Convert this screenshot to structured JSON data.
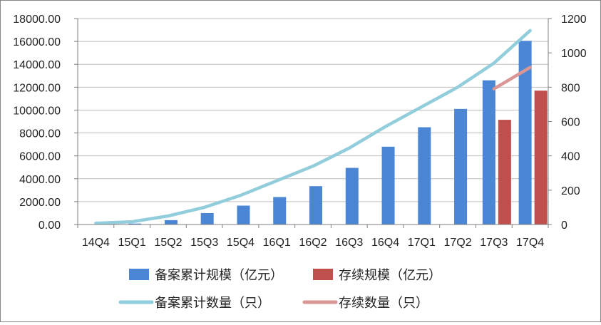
{
  "chart_data": {
    "type": "bar",
    "categories": [
      "14Q4",
      "15Q1",
      "15Q2",
      "15Q3",
      "15Q4",
      "16Q1",
      "16Q2",
      "16Q3",
      "16Q4",
      "17Q1",
      "17Q2",
      "17Q3",
      "17Q4"
    ],
    "bar_series": [
      {
        "name": "备案累计规模（亿元）",
        "color": "#4a86d4",
        "axis": "left",
        "values": [
          0,
          80,
          380,
          1000,
          1650,
          2400,
          3350,
          4950,
          6800,
          8500,
          10100,
          12600,
          16050
        ]
      },
      {
        "name": "存续规模（亿元）",
        "color": "#c0504d",
        "axis": "left",
        "values": [
          null,
          null,
          null,
          null,
          null,
          null,
          null,
          null,
          null,
          null,
          null,
          9150,
          11700
        ]
      }
    ],
    "line_series": [
      {
        "name": "备案累计数量（只）",
        "color": "#92cddc",
        "axis": "right",
        "values": [
          7,
          16,
          50,
          100,
          170,
          255,
          340,
          445,
          570,
          685,
          800,
          940,
          1130
        ]
      },
      {
        "name": "存续数量（只）",
        "color": "#da9694",
        "axis": "right",
        "values": [
          null,
          null,
          null,
          null,
          null,
          null,
          null,
          null,
          null,
          null,
          null,
          790,
          915
        ]
      }
    ],
    "y_left": {
      "min": 0,
      "max": 18000,
      "ticks": [
        "0.00",
        "2000.00",
        "4000.00",
        "6000.00",
        "8000.00",
        "10000.00",
        "12000.00",
        "14000.00",
        "16000.00",
        "18000.00"
      ]
    },
    "y_right": {
      "min": 0,
      "max": 1200,
      "ticks": [
        "0",
        "200",
        "400",
        "600",
        "800",
        "1000",
        "1200"
      ]
    },
    "grid": true,
    "legend_position": "bottom"
  }
}
